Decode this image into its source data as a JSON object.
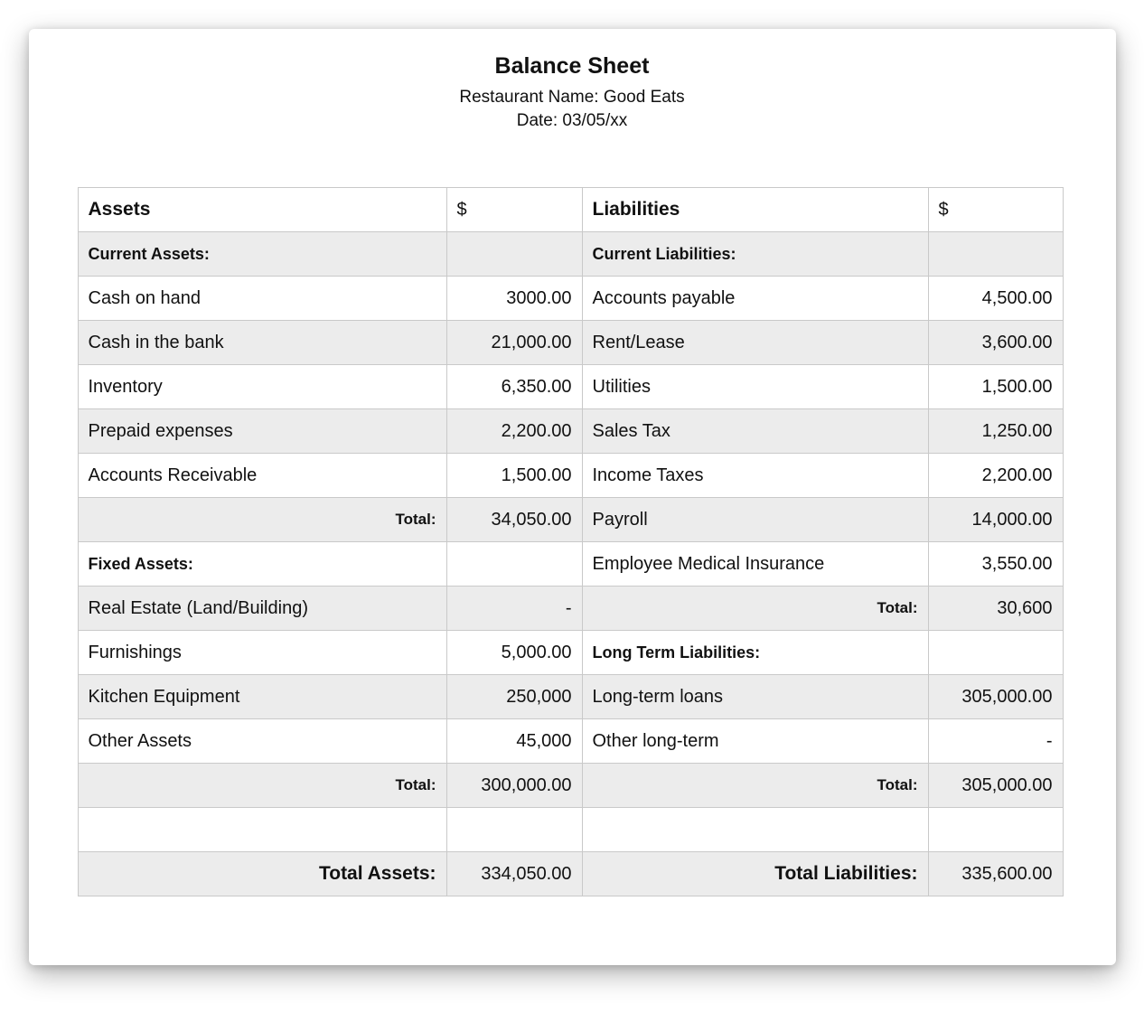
{
  "document": {
    "title": "Balance Sheet",
    "restaurant_line": "Restaurant Name: Good Eats",
    "date_line": "Date: 03/05/xx"
  },
  "colors": {
    "row_stripe": "#ececec",
    "table_border": "#c9c9c9",
    "text": "#111111",
    "page_background": "#ffffff"
  },
  "table": {
    "header": {
      "assets": "Assets",
      "assets_currency": "$",
      "liabilities": "Liabilities",
      "liabilities_currency": "$"
    },
    "rows": [
      {
        "left_label": "Current Assets:",
        "left_amount": "",
        "right_label": "Current Liabilities:",
        "right_amount": ""
      },
      {
        "left_label": "Cash on hand",
        "left_amount": "3000.00",
        "right_label": "Accounts payable",
        "right_amount": "4,500.00"
      },
      {
        "left_label": "Cash in the bank",
        "left_amount": "21,000.00",
        "right_label": "Rent/Lease",
        "right_amount": "3,600.00"
      },
      {
        "left_label": "Inventory",
        "left_amount": "6,350.00",
        "right_label": "Utilities",
        "right_amount": "1,500.00"
      },
      {
        "left_label": "Prepaid expenses",
        "left_amount": "2,200.00",
        "right_label": "Sales Tax",
        "right_amount": "1,250.00"
      },
      {
        "left_label": "Accounts Receivable",
        "left_amount": "1,500.00",
        "right_label": "Income Taxes",
        "right_amount": "2,200.00"
      },
      {
        "left_label": "Total:",
        "left_amount": "34,050.00",
        "right_label": "Payroll",
        "right_amount": "14,000.00"
      },
      {
        "left_label": "Fixed Assets:",
        "left_amount": "",
        "right_label": "Employee Medical Insurance",
        "right_amount": "3,550.00"
      },
      {
        "left_label": "Real Estate (Land/Building)",
        "left_amount": "-",
        "right_label": "Total:",
        "right_amount": "30,600"
      },
      {
        "left_label": "Furnishings",
        "left_amount": "5,000.00",
        "right_label": "Long Term Liabilities:",
        "right_amount": ""
      },
      {
        "left_label": "Kitchen Equipment",
        "left_amount": "250,000",
        "right_label": "Long-term loans",
        "right_amount": "305,000.00"
      },
      {
        "left_label": "Other Assets",
        "left_amount": "45,000",
        "right_label": "Other long-term",
        "right_amount": "-"
      },
      {
        "left_label": "Total:",
        "left_amount": "300,000.00",
        "right_label": "Total:",
        "right_amount": "305,000.00"
      },
      {
        "left_label": "",
        "left_amount": "",
        "right_label": "",
        "right_amount": ""
      },
      {
        "left_label": "Total Assets:",
        "left_amount": "334,050.00",
        "right_label": "Total Liabilities:",
        "right_amount": "335,600.00"
      }
    ]
  }
}
